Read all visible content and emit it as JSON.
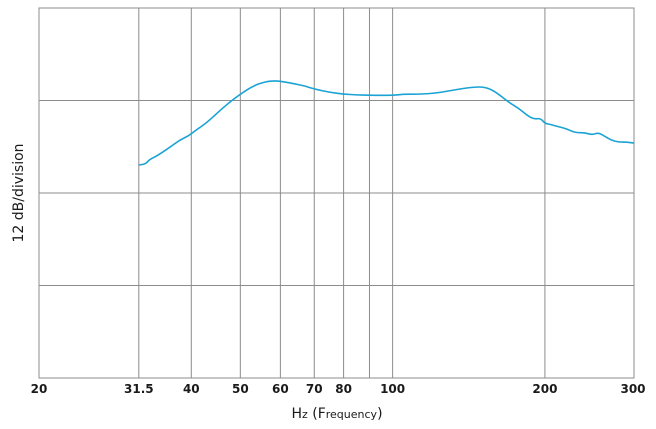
{
  "chart_data": {
    "type": "line",
    "title": "",
    "xlabel": "Hz (Frequency)",
    "xlabel_parts": {
      "lead": "H",
      "first_sc": "z",
      "paren_open": " (",
      "cap": "F",
      "rest_sc": "requency",
      "paren_close": ")"
    },
    "ylabel": "12 dB/division",
    "x_scale": "log",
    "xlim": [
      20,
      300
    ],
    "x_ticks": [
      20,
      31.5,
      40,
      50,
      60,
      70,
      80,
      100,
      200,
      300
    ],
    "x_tick_labels": [
      "20",
      "31.5",
      "40",
      "50",
      "60",
      "70",
      "80",
      "100",
      "200",
      "300"
    ],
    "x_gridlines": [
      31.5,
      40,
      50,
      60,
      70,
      80,
      90,
      100,
      200
    ],
    "y_divisions": 4,
    "grid": true,
    "series": [
      {
        "color": "#1aa3d4",
        "x": [
          31.5,
          32.5,
          33,
          34,
          35,
          36.5,
          38,
          39.5,
          41,
          43,
          45,
          47.5,
          50,
          53,
          56,
          58.5,
          61,
          64,
          67,
          70,
          75,
          80,
          85,
          90,
          95,
          100,
          105,
          110,
          118,
          125,
          132,
          140,
          146,
          151,
          156,
          162,
          170,
          178,
          184,
          190,
          196,
          200,
          205,
          212,
          220,
          230,
          240,
          248,
          255,
          262,
          270,
          280,
          290,
          300
        ],
        "y": [
          0.0,
          0.05,
          0.25,
          0.4,
          0.6,
          0.9,
          1.2,
          1.4,
          1.7,
          2.05,
          2.5,
          3.0,
          3.4,
          3.8,
          4.0,
          4.05,
          4.0,
          3.9,
          3.8,
          3.65,
          3.5,
          3.4,
          3.37,
          3.35,
          3.35,
          3.35,
          3.4,
          3.4,
          3.42,
          3.5,
          3.6,
          3.7,
          3.75,
          3.75,
          3.65,
          3.4,
          3.0,
          2.7,
          2.4,
          2.2,
          2.25,
          2.0,
          1.95,
          1.85,
          1.75,
          1.55,
          1.55,
          1.45,
          1.55,
          1.4,
          1.2,
          1.1,
          1.1,
          1.05
        ],
        "y_units": "dB relative to 31.5 Hz"
      }
    ]
  }
}
